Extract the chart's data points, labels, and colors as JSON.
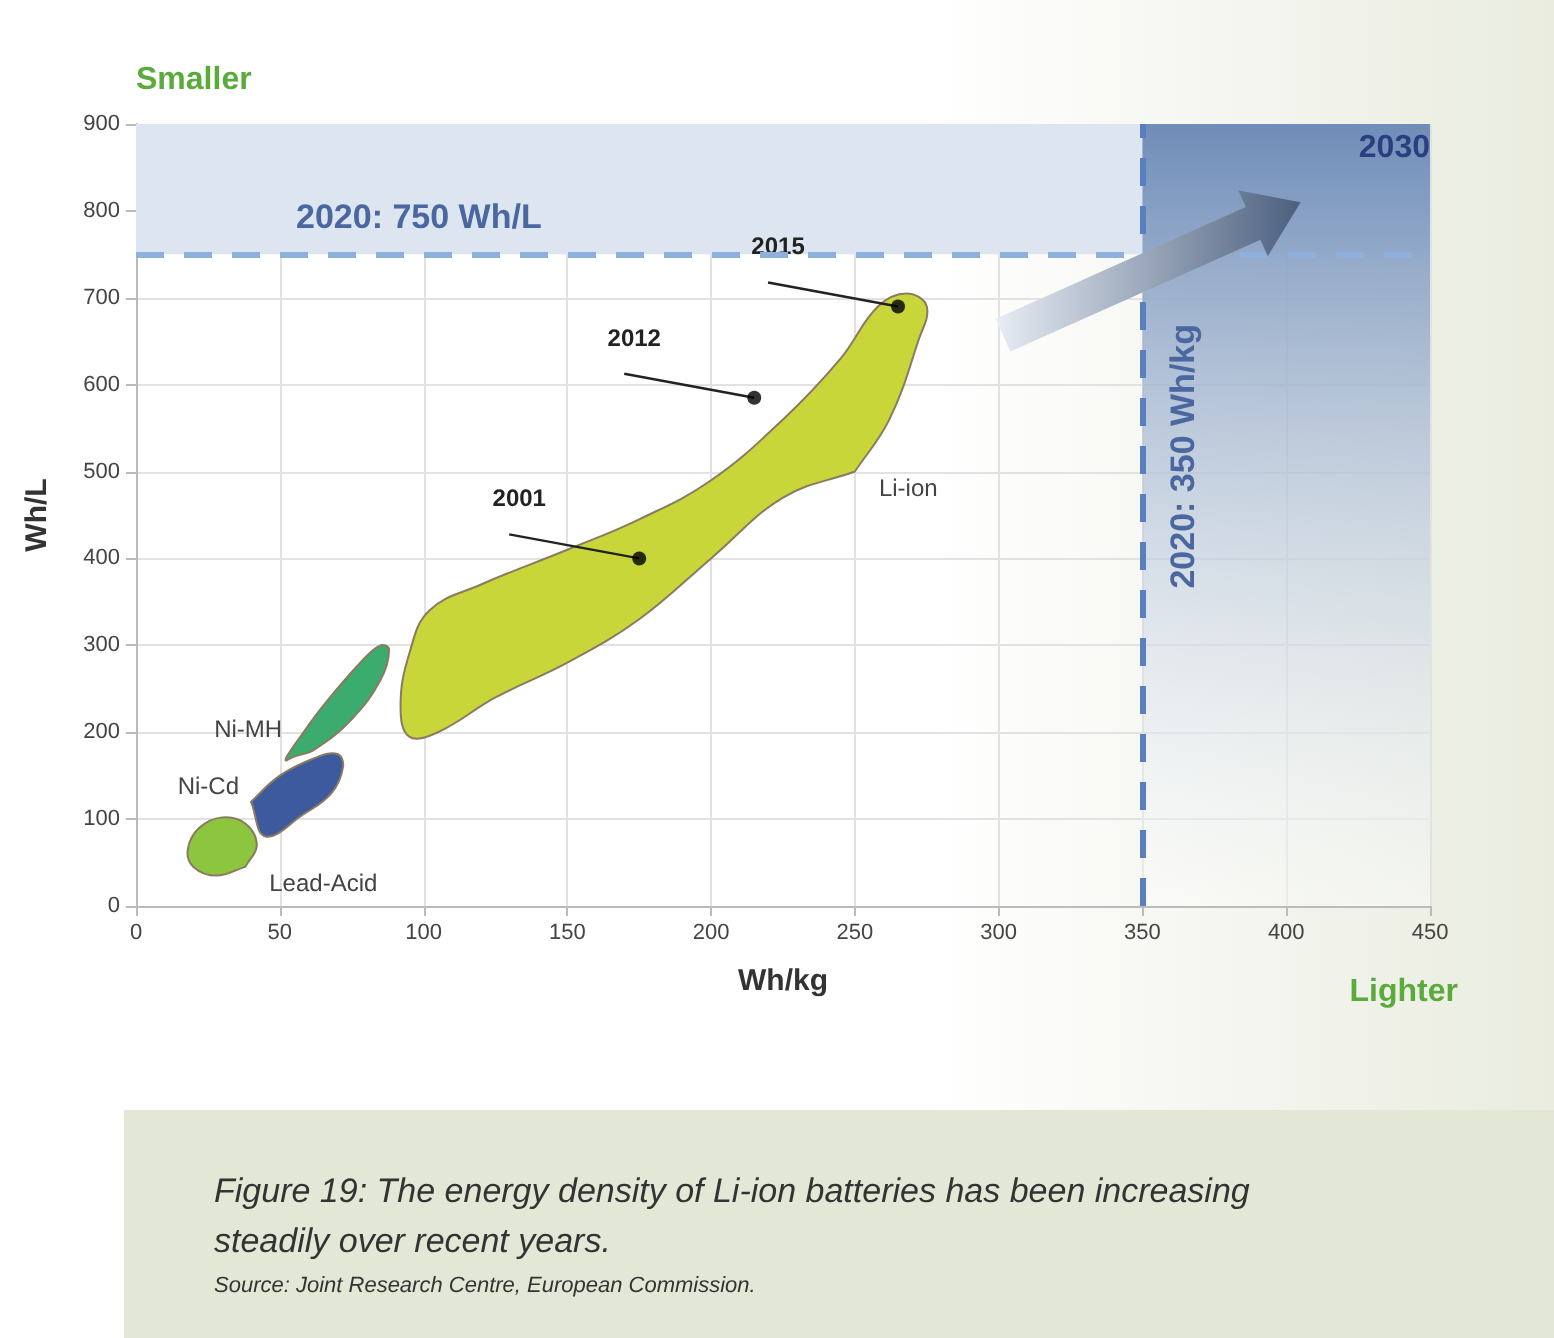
{
  "chart_data": {
    "type": "area",
    "xlabel": "Wh/kg",
    "ylabel": "Wh/L",
    "xlim": [
      0,
      450
    ],
    "xticks": [
      0,
      50,
      100,
      150,
      200,
      250,
      300,
      350,
      400,
      450
    ],
    "ylim": [
      0,
      900
    ],
    "yticks": [
      0,
      100,
      200,
      300,
      400,
      500,
      600,
      700,
      800,
      900
    ],
    "grid": true,
    "legend": false,
    "series": [
      {
        "name": "Li-ion",
        "color": "#c8d639",
        "x": [
          250,
          262,
          272,
          275,
          268,
          258,
          245,
          225,
          200,
          175,
          150,
          120,
          102,
          95,
          92,
          95,
          105,
          125,
          150,
          175,
          200,
          225,
          250
        ],
        "values": [
          500,
          560,
          650,
          690,
          705,
          690,
          630,
          560,
          490,
          445,
          410,
          370,
          340,
          290,
          230,
          195,
          200,
          240,
          280,
          330,
          400,
          470,
          500
        ]
      },
      {
        "name": "Ni-MH",
        "color": "#3cab6e",
        "x": [
          55,
          65,
          78,
          85,
          88,
          85,
          75,
          62,
          55,
          52,
          55
        ],
        "values": [
          185,
          230,
          280,
          300,
          295,
          260,
          215,
          180,
          172,
          168,
          185
        ]
      },
      {
        "name": "Ni-Cd",
        "color": "#3d5a9e",
        "x": [
          40,
          50,
          62,
          70,
          72,
          68,
          58,
          45,
          40
        ],
        "values": [
          120,
          150,
          170,
          175,
          160,
          130,
          105,
          80,
          120
        ]
      },
      {
        "name": "Lead-Acid",
        "color": "#8cc63f",
        "x": [
          38,
          42,
          38,
          30,
          22,
          18,
          20,
          28,
          38
        ],
        "values": [
          45,
          70,
          95,
          102,
          90,
          65,
          45,
          35,
          45
        ]
      },
      {
        "type": "scatter",
        "color": "#000000",
        "marker": "circle",
        "x": [
          175,
          215,
          265
        ],
        "values": [
          400,
          585,
          690
        ]
      }
    ],
    "ref_lines": [
      {
        "axis": "y",
        "value": 750,
        "label": "2020: 750 Wh/L",
        "color": "#8fb0dc",
        "line_style": "dashed"
      },
      {
        "axis": "x",
        "value": 350,
        "label": "2020: 350 Wh/kg",
        "color": "#5a7fbf",
        "line_style": "dashed"
      }
    ],
    "bands": [
      {
        "axis": "y",
        "from": 750,
        "to": 900,
        "color": "#dce5f0"
      },
      {
        "axis": "x",
        "from": 350,
        "to": 450,
        "color": "#6f8db8"
      }
    ],
    "annotations": [
      {
        "text": "2001",
        "x": 175,
        "y": 400
      },
      {
        "text": "2012",
        "x": 215,
        "y": 585
      },
      {
        "text": "2015",
        "x": 265,
        "y": 690
      },
      "Smaller",
      "Lighter",
      "2030",
      "Figure 19: The energy density of Li-ion batteries has been increasing steadily over recent years.",
      "Source: Joint Research Centre, European Commission."
    ]
  }
}
